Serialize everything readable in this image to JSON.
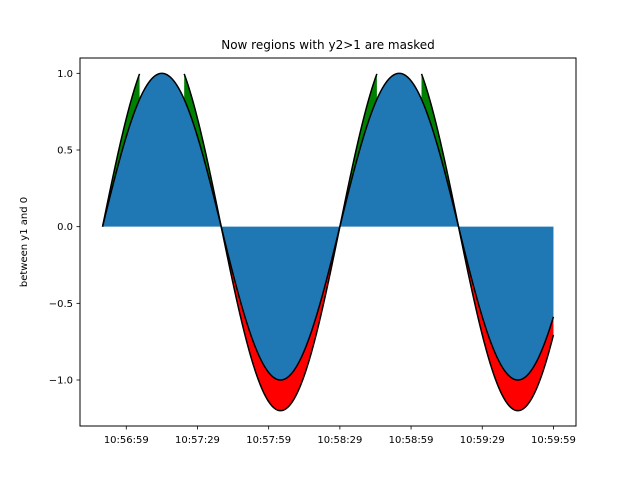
{
  "chart_data": {
    "type": "area",
    "title": "Now regions with y2>1 are masked",
    "xlabel": "",
    "ylabel": "between y1 and 0",
    "x_start_time": "10:56:49",
    "x_end_time": "10:59:59",
    "xticks": [
      "10:56:59",
      "10:57:29",
      "10:57:59",
      "10:58:29",
      "10:58:59",
      "10:59:29",
      "10:59:59"
    ],
    "yticks": [
      "−1.0",
      "−0.5",
      "0.0",
      "0.5",
      "1.0"
    ],
    "ylim": [
      -1.3,
      1.1
    ],
    "grid": false,
    "legend": "none",
    "series": [
      {
        "values_formula": "y1 = sin(2*pi*t/100), t in seconds from 10:56:49"
      },
      {
        "values_formula": "y2 = 1.2*y1 masked where y2>1"
      }
    ],
    "colors": {
      "fill_between_zero": "#1f77b4",
      "y2_above_y1": "#008000",
      "y2_below_y1": "#ff0000",
      "lines": "#000000"
    }
  }
}
